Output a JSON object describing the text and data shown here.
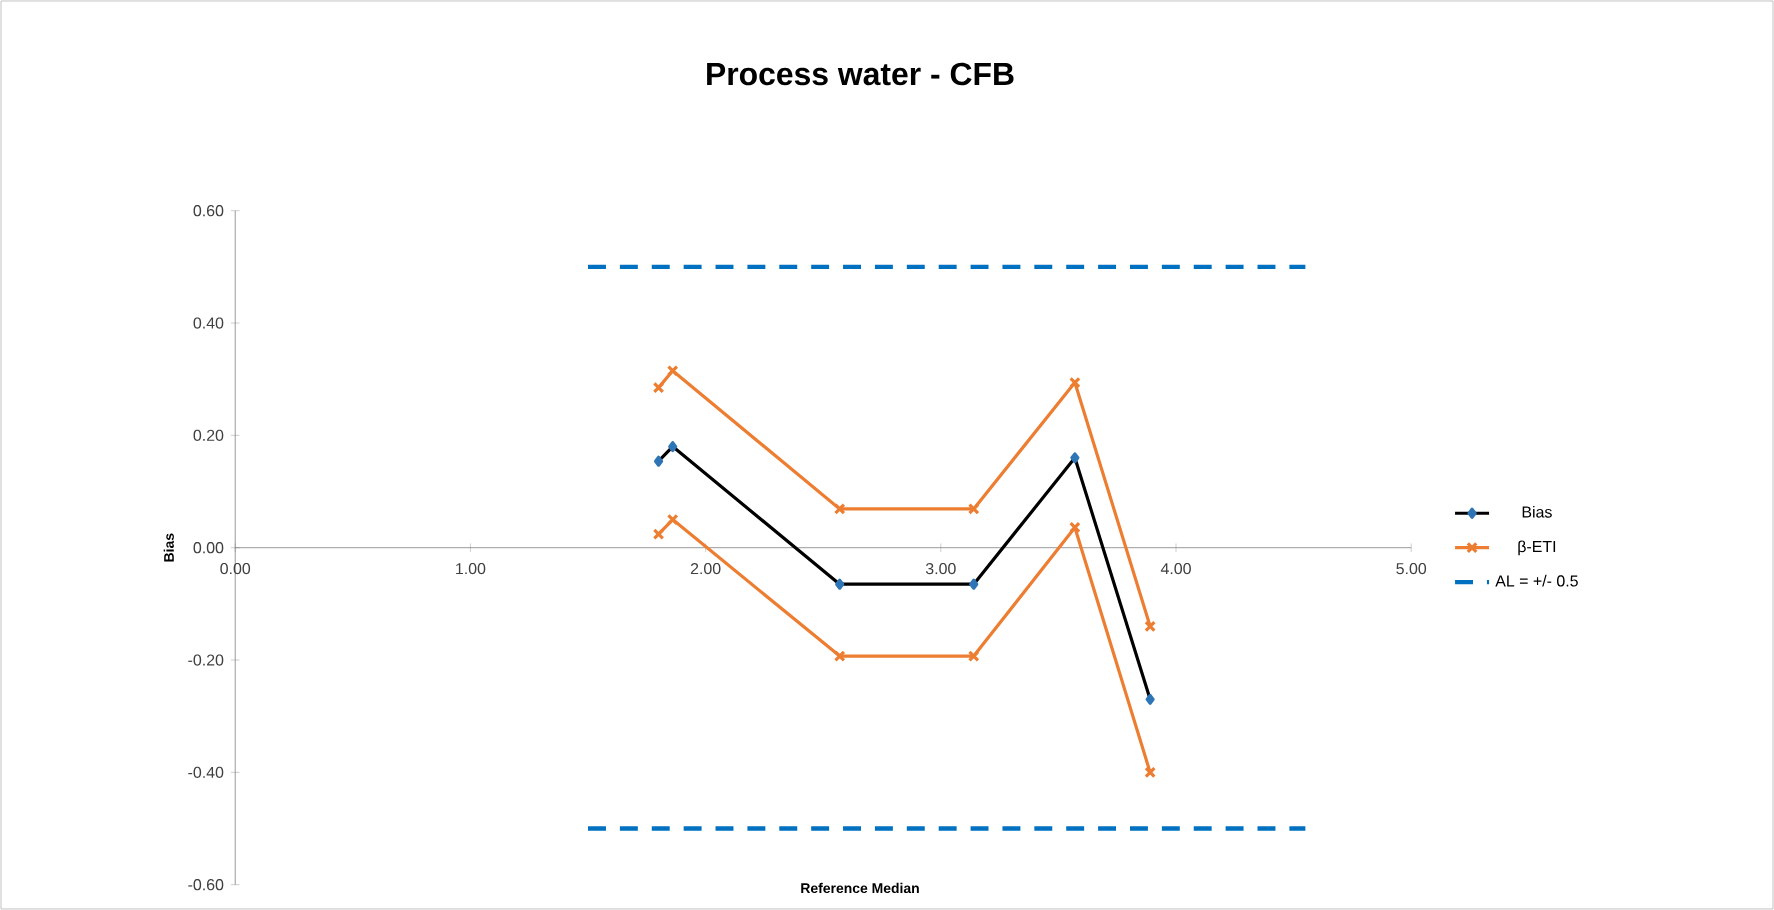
{
  "chart_data": {
    "type": "line",
    "title": "Process water - CFB",
    "xlabel": "Reference Median",
    "ylabel": "Bias",
    "xlim": [
      0,
      5
    ],
    "ylim": [
      -0.6,
      0.6
    ],
    "xticks": [
      {
        "value": 0,
        "label": "0.00"
      },
      {
        "value": 1,
        "label": "1.00"
      },
      {
        "value": 2,
        "label": "2.00"
      },
      {
        "value": 3,
        "label": "3.00"
      },
      {
        "value": 4,
        "label": "4.00"
      },
      {
        "value": 5,
        "label": "5.00"
      }
    ],
    "yticks": [
      {
        "value": -0.6,
        "label": "-0.60"
      },
      {
        "value": -0.4,
        "label": "-0.40"
      },
      {
        "value": -0.2,
        "label": "-0.20"
      },
      {
        "value": 0,
        "label": "0.00"
      },
      {
        "value": 0.2,
        "label": "0.20"
      },
      {
        "value": 0.4,
        "label": "0.40"
      },
      {
        "value": 0.6,
        "label": "0.60"
      }
    ],
    "grid": false,
    "legend": "right",
    "series": [
      {
        "name": "Bias",
        "color": "#000000",
        "marker": "diamond",
        "line_style": "solid",
        "x": [
          1.8,
          1.86,
          2.57,
          3.14,
          3.57,
          3.89
        ],
        "values": [
          0.154,
          0.18,
          -0.065,
          -0.065,
          0.16,
          -0.27
        ]
      },
      {
        "name": "β-ETI",
        "color": "#ed7d31",
        "marker": "cross",
        "line_style": "solid",
        "x": [
          1.8,
          1.86,
          2.57,
          3.14,
          3.57,
          3.89
        ],
        "values": [
          0.285,
          0.315,
          0.069,
          0.069,
          0.294,
          -0.14
        ]
      },
      {
        "color": "#ed7d31",
        "marker": "cross",
        "line_style": "solid",
        "x": [
          1.8,
          1.86,
          2.57,
          3.14,
          3.57,
          3.89
        ],
        "values": [
          0.024,
          0.05,
          -0.193,
          -0.193,
          0.036,
          -0.4
        ]
      },
      {
        "name": "AL = +/- 0.5",
        "color": "#0070c0",
        "marker": "none",
        "line_style": "dashed",
        "x": [
          1.5,
          4.55
        ],
        "values": [
          0.5,
          0.5
        ]
      },
      {
        "color": "#0070c0",
        "marker": "none",
        "line_style": "dashed",
        "x": [
          1.5,
          4.55
        ],
        "values": [
          -0.5,
          -0.5
        ]
      }
    ]
  }
}
